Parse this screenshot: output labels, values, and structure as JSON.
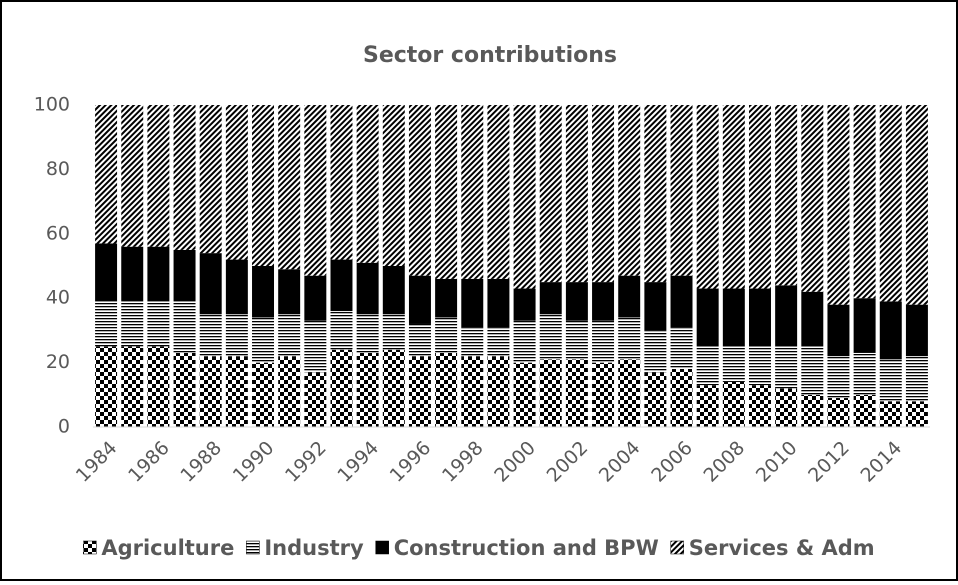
{
  "chart_data": {
    "type": "stacked_bar",
    "title": "Sector contributions",
    "categories": [
      "1984",
      null,
      "1986",
      null,
      "1988",
      null,
      "1990",
      null,
      "1992",
      null,
      "1994",
      null,
      "1996",
      null,
      "1998",
      null,
      "2000",
      null,
      "2002",
      null,
      "2004",
      null,
      "2006",
      null,
      "2008",
      null,
      "2010",
      null,
      "2012",
      null,
      "2014",
      null
    ],
    "series": [
      {
        "name": "Agriculture",
        "color": "#000000",
        "pattern": "checker",
        "values": [
          25,
          25,
          25,
          23,
          22,
          22,
          20,
          22,
          17,
          24,
          23,
          24,
          22,
          23,
          22,
          22,
          20,
          21,
          21,
          20,
          21,
          17,
          18,
          13,
          14,
          13,
          12,
          10,
          9,
          10,
          8,
          8
        ]
      },
      {
        "name": "Industry",
        "color": "#000000",
        "pattern": "horizontal",
        "values": [
          14,
          14,
          14,
          16,
          13,
          13,
          14,
          13,
          16,
          12,
          12,
          11,
          10,
          11,
          9,
          9,
          13,
          14,
          12,
          13,
          13,
          13,
          13,
          12,
          11,
          12,
          13,
          15,
          13,
          13,
          13,
          14
        ]
      },
      {
        "name": "Construction and BPW",
        "color": "#000000",
        "pattern": "solid",
        "values": [
          18,
          17,
          17,
          16,
          19,
          17,
          16,
          14,
          14,
          16,
          16,
          15,
          15,
          12,
          15,
          15,
          10,
          10,
          12,
          12,
          13,
          15,
          16,
          18,
          18,
          18,
          19,
          17,
          16,
          17,
          18,
          16
        ]
      },
      {
        "name": "Services & Adm",
        "color": "#000000",
        "pattern": "diagonal",
        "values": [
          43,
          44,
          44,
          45,
          46,
          48,
          50,
          51,
          53,
          48,
          49,
          50,
          53,
          54,
          54,
          54,
          57,
          55,
          55,
          55,
          53,
          55,
          53,
          57,
          57,
          57,
          56,
          58,
          62,
          60,
          61,
          62
        ]
      }
    ],
    "ylim": [
      0,
      100
    ],
    "yticks": [
      0,
      20,
      40,
      60,
      80,
      100
    ],
    "grid": false,
    "legend": "bottom"
  }
}
